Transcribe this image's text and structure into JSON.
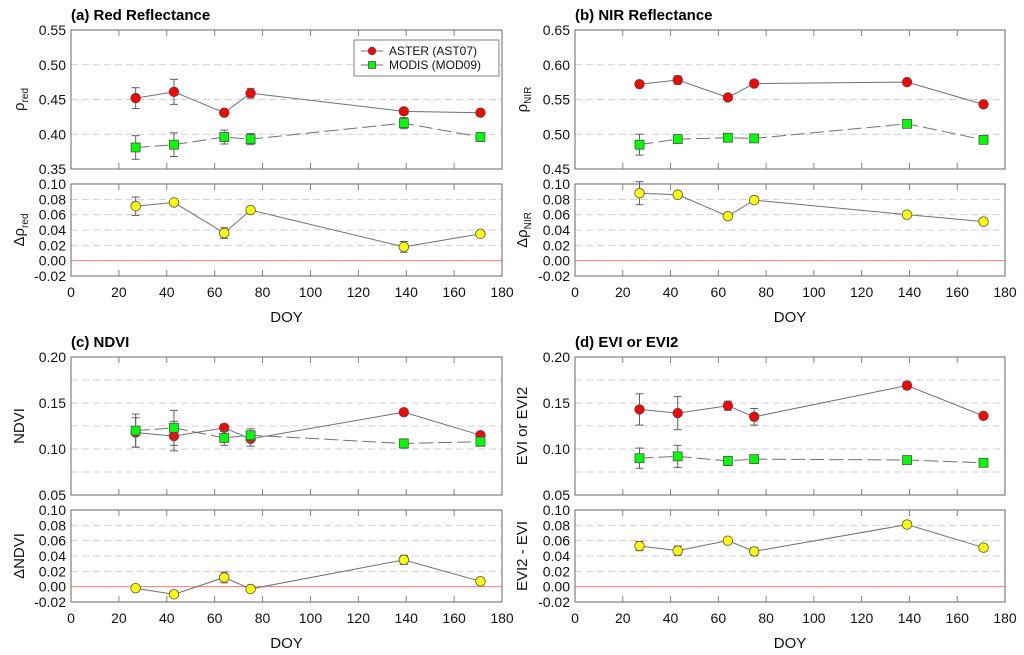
{
  "chart_data": [
    {
      "type": "scatter",
      "panel": "a",
      "title": "(a) Red Reflectance",
      "xlabel": "DOY",
      "xlim": [
        0,
        180
      ],
      "xticks": [
        0,
        20,
        40,
        60,
        80,
        100,
        120,
        140,
        160,
        180
      ],
      "top": {
        "ylabel": "ρ",
        "ylabel_sub": "red",
        "ylim": [
          0.35,
          0.55
        ],
        "yticks": [
          "0.35",
          "0.40",
          "0.45",
          "0.50",
          "0.55"
        ],
        "grid": true,
        "series": [
          {
            "name": "ASTER (AST07)",
            "marker": "circle",
            "color": "#ff0000",
            "line": "solid",
            "x": [
              27,
              43,
              64,
              75,
              139,
              171
            ],
            "y": [
              0.452,
              0.461,
              0.431,
              0.459,
              0.433,
              0.431
            ],
            "err": [
              0.015,
              0.018,
              0.0,
              0.007,
              0.0,
              0.0
            ]
          },
          {
            "name": "MODIS (MOD09)",
            "marker": "square",
            "color": "#00ff00",
            "line": "dashed",
            "x": [
              27,
              43,
              64,
              75,
              139,
              171
            ],
            "y": [
              0.381,
              0.385,
              0.396,
              0.393,
              0.416,
              0.396
            ],
            "err": [
              0.017,
              0.017,
              0.01,
              0.008,
              0.008,
              0.006
            ]
          }
        ]
      },
      "bottom": {
        "ylabel": "Δρ",
        "ylabel_sub": "red",
        "ylim": [
          -0.02,
          0.1
        ],
        "yticks": [
          "-0.02",
          "0.00",
          "0.02",
          "0.04",
          "0.06",
          "0.08",
          "0.10"
        ],
        "grid": true,
        "zero_line": true,
        "series": [
          {
            "name": "difference",
            "marker": "circle",
            "color": "#ffff00",
            "line": "solid",
            "x": [
              27,
              43,
              64,
              75,
              139,
              171
            ],
            "y": [
              0.071,
              0.076,
              0.036,
              0.066,
              0.018,
              0.035
            ],
            "err": [
              0.012,
              0.0,
              0.007,
              0.0,
              0.007,
              0.003
            ]
          }
        ]
      },
      "legend": {
        "position": "top-right",
        "entries": [
          "ASTER (AST07)",
          "MODIS (MOD09)"
        ]
      }
    },
    {
      "type": "scatter",
      "panel": "b",
      "title": "(b) NIR Reflectance",
      "xlabel": "DOY",
      "xlim": [
        0,
        180
      ],
      "xticks": [
        0,
        20,
        40,
        60,
        80,
        100,
        120,
        140,
        160,
        180
      ],
      "top": {
        "ylabel": "ρ",
        "ylabel_sub": "NIR",
        "ylim": [
          0.45,
          0.65
        ],
        "yticks": [
          "0.45",
          "0.50",
          "0.55",
          "0.60",
          "0.65"
        ],
        "grid": true,
        "series": [
          {
            "name": "ASTER (AST07)",
            "marker": "circle",
            "color": "#ff0000",
            "line": "solid",
            "x": [
              27,
              43,
              64,
              75,
              139,
              171
            ],
            "y": [
              0.572,
              0.578,
              0.553,
              0.573,
              0.575,
              0.543
            ],
            "err": [
              0.003,
              0.006,
              0.0,
              0.003,
              0.003,
              0.0
            ]
          },
          {
            "name": "MODIS (MOD09)",
            "marker": "square",
            "color": "#00ff00",
            "line": "dashed",
            "x": [
              27,
              43,
              64,
              75,
              139,
              171
            ],
            "y": [
              0.485,
              0.493,
              0.495,
              0.494,
              0.515,
              0.492
            ],
            "err": [
              0.015,
              0.006,
              0.003,
              0.003,
              0.006,
              0.0
            ]
          }
        ]
      },
      "bottom": {
        "ylabel": "Δρ",
        "ylabel_sub": "NIR",
        "ylim": [
          -0.02,
          0.1
        ],
        "yticks": [
          "-0.02",
          "0.00",
          "0.02",
          "0.04",
          "0.06",
          "0.08",
          "0.10"
        ],
        "grid": true,
        "zero_line": true,
        "series": [
          {
            "name": "difference",
            "marker": "circle",
            "color": "#ffff00",
            "line": "solid",
            "x": [
              27,
              43,
              64,
              75,
              139,
              171
            ],
            "y": [
              0.088,
              0.086,
              0.058,
              0.079,
              0.06,
              0.051
            ],
            "err": [
              0.015,
              0.0,
              0.003,
              0.0,
              0.003,
              0.0
            ]
          }
        ]
      }
    },
    {
      "type": "scatter",
      "panel": "c",
      "title": "(c) NDVI",
      "xlabel": "DOY",
      "xlim": [
        0,
        180
      ],
      "xticks": [
        0,
        20,
        40,
        60,
        80,
        100,
        120,
        140,
        160,
        180
      ],
      "top": {
        "ylabel": "NDVI",
        "ylabel_sub": "",
        "ylim": [
          0.05,
          0.2
        ],
        "yticks": [
          "0.05",
          "0.10",
          "0.15",
          "0.20"
        ],
        "gridlines": [
          0.075,
          0.1,
          0.125,
          0.15,
          0.175
        ],
        "grid": true,
        "series": [
          {
            "name": "ASTER (AST07)",
            "marker": "circle",
            "color": "#ff0000",
            "line": "solid",
            "x": [
              27,
              43,
              64,
              75,
              139,
              171
            ],
            "y": [
              0.118,
              0.114,
              0.123,
              0.111,
              0.14,
              0.115
            ],
            "err": [
              0.016,
              0.016,
              0.004,
              0.008,
              0.003,
              0.0
            ]
          },
          {
            "name": "MODIS (MOD09)",
            "marker": "square",
            "color": "#00ff00",
            "line": "dashed",
            "x": [
              27,
              43,
              64,
              75,
              139,
              171
            ],
            "y": [
              0.12,
              0.123,
              0.112,
              0.115,
              0.106,
              0.108
            ],
            "err": [
              0.018,
              0.019,
              0.008,
              0.007,
              0.005,
              0.005
            ]
          }
        ]
      },
      "bottom": {
        "ylabel": "ΔNDVI",
        "ylabel_sub": "",
        "ylim": [
          -0.02,
          0.1
        ],
        "yticks": [
          "-0.02",
          "0.00",
          "0.02",
          "0.04",
          "0.06",
          "0.08",
          "0.10"
        ],
        "grid": true,
        "zero_line": true,
        "series": [
          {
            "name": "difference",
            "marker": "circle",
            "color": "#ffff00",
            "line": "solid",
            "x": [
              27,
              43,
              64,
              75,
              139,
              171
            ],
            "y": [
              -0.002,
              -0.01,
              0.012,
              -0.003,
              0.035,
              0.007
            ],
            "err": [
              0.0,
              0.0,
              0.007,
              0.0,
              0.006,
              0.004
            ]
          }
        ]
      }
    },
    {
      "type": "scatter",
      "panel": "d",
      "title": "(d) EVI or EVI2",
      "xlabel": "DOY",
      "xlim": [
        0,
        180
      ],
      "xticks": [
        0,
        20,
        40,
        60,
        80,
        100,
        120,
        140,
        160,
        180
      ],
      "top": {
        "ylabel": "EVI or EVI2",
        "ylabel_sub": "",
        "ylim": [
          0.05,
          0.2
        ],
        "yticks": [
          "0.05",
          "0.10",
          "0.15",
          "0.20"
        ],
        "gridlines": [
          0.075,
          0.1,
          0.125,
          0.15,
          0.175
        ],
        "grid": true,
        "series": [
          {
            "name": "ASTER (AST07)",
            "marker": "circle",
            "color": "#ff0000",
            "line": "solid",
            "x": [
              27,
              43,
              64,
              75,
              139,
              171
            ],
            "y": [
              0.143,
              0.139,
              0.147,
              0.135,
              0.169,
              0.136
            ],
            "err": [
              0.017,
              0.018,
              0.005,
              0.009,
              0.004,
              0.002
            ]
          },
          {
            "name": "MODIS (MOD09)",
            "marker": "square",
            "color": "#00ff00",
            "line": "dashed",
            "x": [
              27,
              43,
              64,
              75,
              139,
              171
            ],
            "y": [
              0.09,
              0.092,
              0.087,
              0.089,
              0.088,
              0.085
            ],
            "err": [
              0.011,
              0.012,
              0.005,
              0.004,
              0.002,
              0.0
            ]
          }
        ]
      },
      "bottom": {
        "ylabel": "EVI2 - EVI",
        "ylabel_sub": "",
        "ylim": [
          -0.02,
          0.1
        ],
        "yticks": [
          "-0.02",
          "0.00",
          "0.02",
          "0.04",
          "0.06",
          "0.08",
          "0.10"
        ],
        "grid": true,
        "zero_line": true,
        "series": [
          {
            "name": "difference",
            "marker": "circle",
            "color": "#ffff00",
            "line": "solid",
            "x": [
              27,
              43,
              64,
              75,
              139,
              171
            ],
            "y": [
              0.053,
              0.047,
              0.06,
              0.046,
              0.081,
              0.051
            ],
            "err": [
              0.006,
              0.006,
              0.002,
              0.005,
              0.004,
              0.0
            ]
          }
        ]
      }
    }
  ],
  "colors": {
    "aster": "#ff0000",
    "modis": "#00ff00",
    "difference": "#ffff00",
    "zero_line": "#ff8080",
    "frame": "#808080",
    "grid": "#d0d0d0",
    "series_line": "#707070"
  }
}
